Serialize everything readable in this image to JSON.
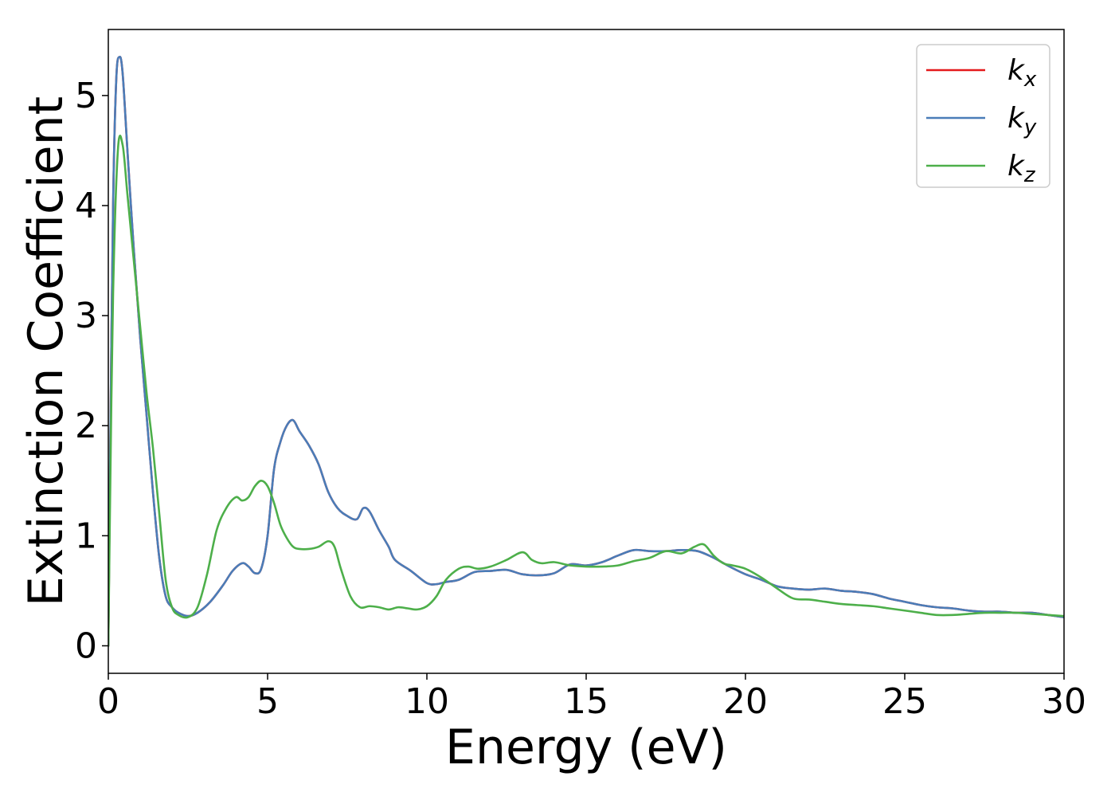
{
  "chart_data": {
    "type": "line",
    "title": "",
    "xlabel": "Energy (eV)",
    "ylabel": "Extinction Coefficient",
    "xlim": [
      0,
      30
    ],
    "ylim": [
      -0.25,
      5.6
    ],
    "xticks": [
      0,
      5,
      10,
      15,
      20,
      25,
      30
    ],
    "yticks": [
      0,
      1,
      2,
      3,
      4,
      5
    ],
    "xtick_labels": [
      "0",
      "5",
      "10",
      "15",
      "20",
      "25",
      "30"
    ],
    "ytick_labels": [
      "0",
      "1",
      "2",
      "3",
      "4",
      "5"
    ],
    "grid": false,
    "legend_position": "top-right",
    "series": [
      {
        "name": "k_x",
        "label_base": "k",
        "label_sub": "x",
        "color": "#e41a1c",
        "x": [
          0,
          0.05,
          0.15,
          0.25,
          0.35,
          0.45,
          0.6,
          0.8,
          1.0,
          1.2,
          1.4,
          1.6,
          1.8,
          2.0,
          2.2,
          2.5,
          2.8,
          3.2,
          3.6,
          3.9,
          4.2,
          4.4,
          4.6,
          4.8,
          5.0,
          5.2,
          5.4,
          5.6,
          5.8,
          6.0,
          6.3,
          6.6,
          6.9,
          7.2,
          7.5,
          7.8,
          8.0,
          8.2,
          8.5,
          8.8,
          9.0,
          9.5,
          10.0,
          10.3,
          10.6,
          11.0,
          11.5,
          12.0,
          12.5,
          13.0,
          13.5,
          14.0,
          14.5,
          15.0,
          15.5,
          16.0,
          16.5,
          17.0,
          17.5,
          18.0,
          18.5,
          19.0,
          19.5,
          20.0,
          20.5,
          21.0,
          21.5,
          22.0,
          22.5,
          23.0,
          23.5,
          24.0,
          24.5,
          25.0,
          25.5,
          26.0,
          26.5,
          27.0,
          27.5,
          28.0,
          28.5,
          29.0,
          29.5,
          30.0
        ],
        "y": [
          0.0,
          1.5,
          4.0,
          5.15,
          5.35,
          5.2,
          4.5,
          3.6,
          2.8,
          2.1,
          1.4,
          0.8,
          0.45,
          0.35,
          0.3,
          0.27,
          0.3,
          0.4,
          0.55,
          0.68,
          0.75,
          0.72,
          0.66,
          0.7,
          1.0,
          1.6,
          1.85,
          2.0,
          2.05,
          1.95,
          1.82,
          1.65,
          1.4,
          1.25,
          1.18,
          1.15,
          1.25,
          1.22,
          1.05,
          0.9,
          0.78,
          0.68,
          0.57,
          0.56,
          0.58,
          0.6,
          0.67,
          0.68,
          0.69,
          0.65,
          0.64,
          0.66,
          0.74,
          0.73,
          0.76,
          0.82,
          0.87,
          0.86,
          0.86,
          0.87,
          0.86,
          0.8,
          0.72,
          0.65,
          0.6,
          0.54,
          0.52,
          0.51,
          0.52,
          0.5,
          0.49,
          0.47,
          0.43,
          0.4,
          0.37,
          0.35,
          0.34,
          0.32,
          0.31,
          0.31,
          0.3,
          0.3,
          0.28,
          0.26
        ]
      },
      {
        "name": "k_y",
        "label_base": "k",
        "label_sub": "y",
        "color": "#4a7db8",
        "x": [
          0,
          0.05,
          0.15,
          0.25,
          0.35,
          0.45,
          0.6,
          0.8,
          1.0,
          1.2,
          1.4,
          1.6,
          1.8,
          2.0,
          2.2,
          2.5,
          2.8,
          3.2,
          3.6,
          3.9,
          4.2,
          4.4,
          4.6,
          4.8,
          5.0,
          5.2,
          5.4,
          5.6,
          5.8,
          6.0,
          6.3,
          6.6,
          6.9,
          7.2,
          7.5,
          7.8,
          8.0,
          8.2,
          8.5,
          8.8,
          9.0,
          9.5,
          10.0,
          10.3,
          10.6,
          11.0,
          11.5,
          12.0,
          12.5,
          13.0,
          13.5,
          14.0,
          14.5,
          15.0,
          15.5,
          16.0,
          16.5,
          17.0,
          17.5,
          18.0,
          18.5,
          19.0,
          19.5,
          20.0,
          20.5,
          21.0,
          21.5,
          22.0,
          22.5,
          23.0,
          23.5,
          24.0,
          24.5,
          25.0,
          25.5,
          26.0,
          26.5,
          27.0,
          27.5,
          28.0,
          28.5,
          29.0,
          29.5,
          30.0
        ],
        "y": [
          0.0,
          1.5,
          4.0,
          5.15,
          5.35,
          5.2,
          4.5,
          3.6,
          2.8,
          2.1,
          1.4,
          0.8,
          0.45,
          0.35,
          0.3,
          0.27,
          0.3,
          0.4,
          0.55,
          0.68,
          0.75,
          0.72,
          0.66,
          0.7,
          1.0,
          1.6,
          1.85,
          2.0,
          2.05,
          1.95,
          1.82,
          1.65,
          1.4,
          1.25,
          1.18,
          1.15,
          1.25,
          1.22,
          1.05,
          0.9,
          0.78,
          0.68,
          0.57,
          0.56,
          0.58,
          0.6,
          0.67,
          0.68,
          0.69,
          0.65,
          0.64,
          0.66,
          0.74,
          0.73,
          0.76,
          0.82,
          0.87,
          0.86,
          0.86,
          0.87,
          0.86,
          0.8,
          0.72,
          0.65,
          0.6,
          0.54,
          0.52,
          0.51,
          0.52,
          0.5,
          0.49,
          0.47,
          0.43,
          0.4,
          0.37,
          0.35,
          0.34,
          0.32,
          0.31,
          0.31,
          0.3,
          0.3,
          0.28,
          0.26
        ]
      },
      {
        "name": "k_z",
        "label_base": "k",
        "label_sub": "z",
        "color": "#4daf4a",
        "x": [
          0,
          0.05,
          0.15,
          0.3,
          0.45,
          0.6,
          0.8,
          1.0,
          1.2,
          1.4,
          1.6,
          1.8,
          2.0,
          2.2,
          2.5,
          2.8,
          3.1,
          3.4,
          3.7,
          4.0,
          4.2,
          4.4,
          4.6,
          4.8,
          5.0,
          5.2,
          5.4,
          5.6,
          5.8,
          6.0,
          6.3,
          6.6,
          6.9,
          7.1,
          7.3,
          7.6,
          7.9,
          8.2,
          8.5,
          8.8,
          9.1,
          9.4,
          9.7,
          10.0,
          10.3,
          10.6,
          11.0,
          11.3,
          11.6,
          12.0,
          12.5,
          13.0,
          13.3,
          13.6,
          14.0,
          14.5,
          15.0,
          15.5,
          16.0,
          16.5,
          17.0,
          17.5,
          18.0,
          18.4,
          18.7,
          19.0,
          19.3,
          19.6,
          20.0,
          20.5,
          21.0,
          21.5,
          22.0,
          22.5,
          23.0,
          23.5,
          24.0,
          24.5,
          25.0,
          25.5,
          26.0,
          26.5,
          27.0,
          27.5,
          28.0,
          28.5,
          29.0,
          29.5,
          30.0
        ],
        "y": [
          0.0,
          1.2,
          3.2,
          4.5,
          4.55,
          4.1,
          3.5,
          2.9,
          2.3,
          1.8,
          1.2,
          0.6,
          0.35,
          0.28,
          0.26,
          0.35,
          0.65,
          1.05,
          1.25,
          1.35,
          1.32,
          1.35,
          1.45,
          1.5,
          1.45,
          1.3,
          1.1,
          0.98,
          0.9,
          0.88,
          0.88,
          0.9,
          0.95,
          0.9,
          0.7,
          0.45,
          0.35,
          0.36,
          0.35,
          0.33,
          0.35,
          0.34,
          0.33,
          0.36,
          0.45,
          0.6,
          0.7,
          0.72,
          0.7,
          0.72,
          0.78,
          0.85,
          0.78,
          0.75,
          0.76,
          0.73,
          0.72,
          0.72,
          0.73,
          0.77,
          0.8,
          0.86,
          0.84,
          0.9,
          0.92,
          0.82,
          0.75,
          0.73,
          0.7,
          0.62,
          0.52,
          0.43,
          0.42,
          0.4,
          0.38,
          0.37,
          0.36,
          0.34,
          0.32,
          0.3,
          0.28,
          0.28,
          0.29,
          0.3,
          0.3,
          0.3,
          0.29,
          0.28,
          0.27
        ]
      }
    ]
  }
}
